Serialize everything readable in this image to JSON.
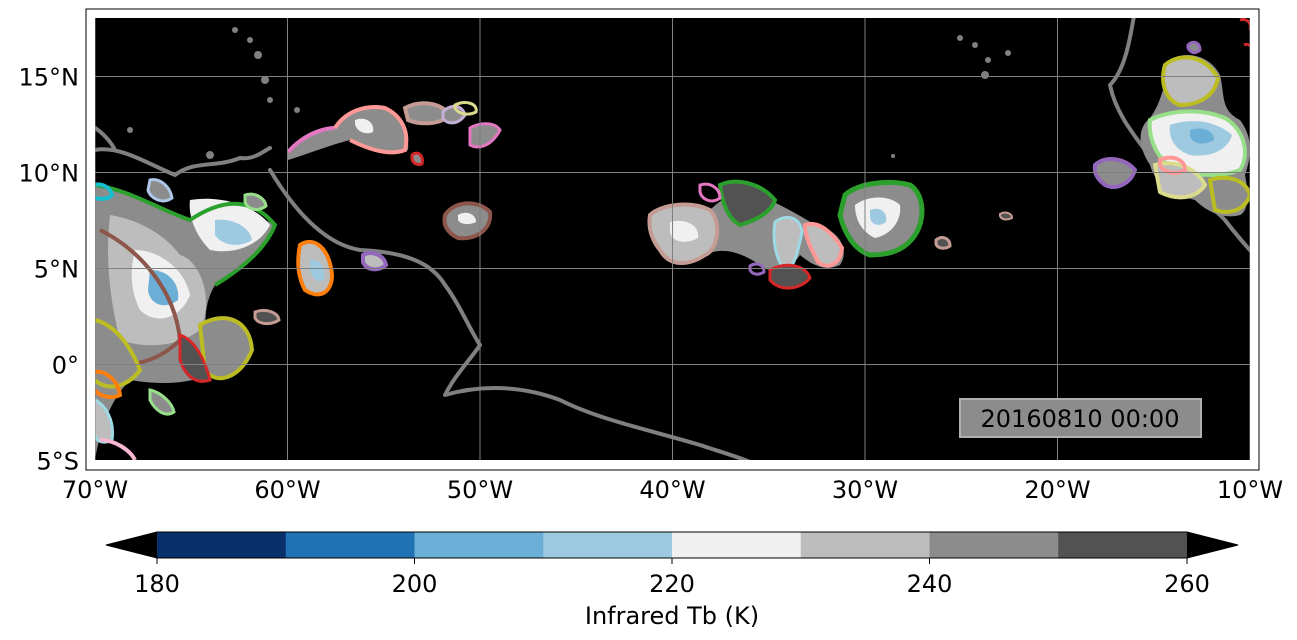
{
  "map": {
    "timestamp": "20160810 00:00",
    "extent": {
      "lon_min": -70.5,
      "lon_max": -10.0,
      "lat_min": -5.5,
      "lat_max": 18.5
    },
    "gridlines": true,
    "xticks": [
      {
        "lon": -70,
        "label": "70°W"
      },
      {
        "lon": -60,
        "label": "60°W"
      },
      {
        "lon": -50,
        "label": "50°W"
      },
      {
        "lon": -40,
        "label": "40°W"
      },
      {
        "lon": -30,
        "label": "30°W"
      },
      {
        "lon": -20,
        "label": "20°W"
      },
      {
        "lon": -10,
        "label": "10°W"
      }
    ],
    "yticks": [
      {
        "lat": 15,
        "label": "15°N"
      },
      {
        "lat": 10,
        "label": "10°N"
      },
      {
        "lat": 5,
        "label": "5°N"
      },
      {
        "lat": 0,
        "label": "0°"
      },
      {
        "lat": -5,
        "label": "5°S"
      }
    ],
    "coastline_color": "#808080",
    "background_color": "#000000"
  },
  "colorbar": {
    "label": "Infrared Tb (K)",
    "min": 180,
    "max": 260,
    "extend": "both",
    "ticks": [
      "180",
      "200",
      "220",
      "240",
      "260"
    ],
    "colors": [
      "#08306b",
      "#2171b5",
      "#6baed6",
      "#9ecae1",
      "#f0f0f0",
      "#bdbdbd",
      "#8c8c8c",
      "#525252"
    ],
    "under_color": "#000000",
    "over_color": "#000000"
  }
}
